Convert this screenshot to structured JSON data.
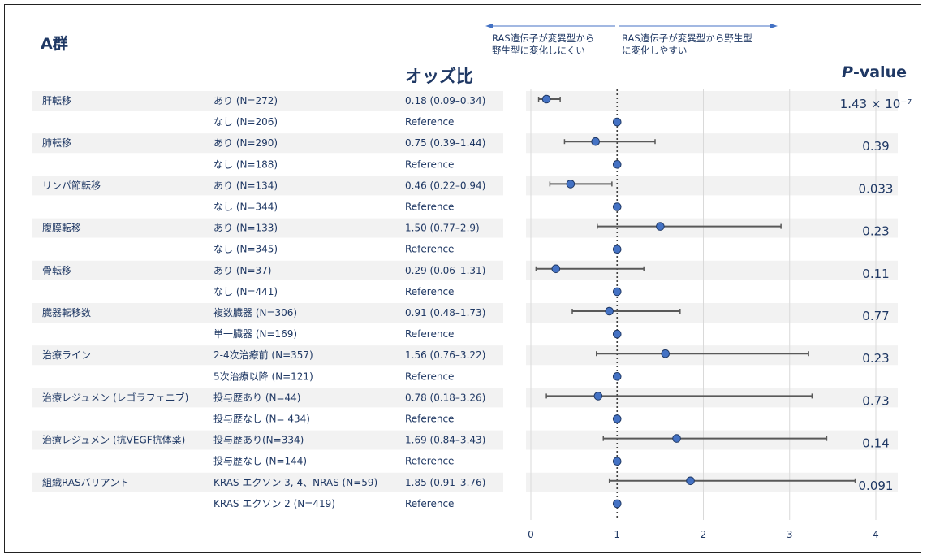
{
  "group_title": "A群",
  "or_header": "オッズ比",
  "pvalue_header": {
    "italic": "P",
    "rest": "-value"
  },
  "direction_left": [
    "RAS遺伝子が変異型から",
    "野生型に変化しにくい"
  ],
  "direction_right": [
    "RAS遺伝子が変異型から野生型",
    "に変化しやすい"
  ],
  "colors": {
    "point": "#4472c4",
    "point_edge": "#1f3864",
    "ci": "#595959",
    "band": "#f2f2f2",
    "text": "#1f3864",
    "arrow": "#4472c4"
  },
  "chart_data": {
    "type": "forest",
    "x_ticks": [
      0,
      1,
      2,
      3,
      4
    ],
    "xlim": [
      0,
      4
    ],
    "reference_line": 1,
    "rows": [
      {
        "variable": "肝転移",
        "level": "あり (N=272)",
        "or_text": "0.18 (0.09–0.34)",
        "or": 0.18,
        "lo": 0.09,
        "hi": 0.34,
        "p": "1.43 × 10⁻⁷"
      },
      {
        "variable": "",
        "level": "なし (N=206)",
        "or_text": "Reference",
        "or": 1,
        "lo": null,
        "hi": null,
        "p": ""
      },
      {
        "variable": "肺転移",
        "level": "あり (N=290)",
        "or_text": "0.75 (0.39–1.44)",
        "or": 0.75,
        "lo": 0.39,
        "hi": 1.44,
        "p": "0.39"
      },
      {
        "variable": "",
        "level": "なし (N=188)",
        "or_text": "Reference",
        "or": 1,
        "lo": null,
        "hi": null,
        "p": ""
      },
      {
        "variable": "リンパ節転移",
        "level": "あり (N=134)",
        "or_text": "0.46 (0.22–0.94)",
        "or": 0.46,
        "lo": 0.22,
        "hi": 0.94,
        "p": "0.033"
      },
      {
        "variable": "",
        "level": "なし (N=344)",
        "or_text": "Reference",
        "or": 1,
        "lo": null,
        "hi": null,
        "p": ""
      },
      {
        "variable": "腹膜転移",
        "level": "あり (N=133)",
        "or_text": "1.50 (0.77–2.9)",
        "or": 1.5,
        "lo": 0.77,
        "hi": 2.9,
        "p": "0.23"
      },
      {
        "variable": "",
        "level": "なし (N=345)",
        "or_text": "Reference",
        "or": 1,
        "lo": null,
        "hi": null,
        "p": ""
      },
      {
        "variable": "骨転移",
        "level": "あり (N=37)",
        "or_text": "0.29 (0.06–1.31)",
        "or": 0.29,
        "lo": 0.06,
        "hi": 1.31,
        "p": "0.11"
      },
      {
        "variable": "",
        "level": "なし (N=441)",
        "or_text": "Reference",
        "or": 1,
        "lo": null,
        "hi": null,
        "p": ""
      },
      {
        "variable": "臓器転移数",
        "level": "複数臓器 (N=306)",
        "or_text": "0.91 (0.48–1.73)",
        "or": 0.91,
        "lo": 0.48,
        "hi": 1.73,
        "p": "0.77"
      },
      {
        "variable": "",
        "level": "単一臓器 (N=169)",
        "or_text": "Reference",
        "or": 1,
        "lo": null,
        "hi": null,
        "p": ""
      },
      {
        "variable": "治療ライン",
        "level": "2-4次治療前 (N=357)",
        "or_text": "1.56 (0.76–3.22)",
        "or": 1.56,
        "lo": 0.76,
        "hi": 3.22,
        "p": "0.23"
      },
      {
        "variable": "",
        "level": "5次治療以降 (N=121)",
        "or_text": "Reference",
        "or": 1,
        "lo": null,
        "hi": null,
        "p": ""
      },
      {
        "variable": "治療レジュメン (レゴラフェニブ)",
        "level": "投与歴あり (N=44)",
        "or_text": "0.78 (0.18–3.26)",
        "or": 0.78,
        "lo": 0.18,
        "hi": 3.26,
        "p": "0.73"
      },
      {
        "variable": "",
        "level": "投与歴なし (N= 434)",
        "or_text": "Reference",
        "or": 1,
        "lo": null,
        "hi": null,
        "p": ""
      },
      {
        "variable": "治療レジュメン (抗VEGF抗体薬)",
        "level": "投与歴あり(N=334)",
        "or_text": "1.69 (0.84–3.43)",
        "or": 1.69,
        "lo": 0.84,
        "hi": 3.43,
        "p": "0.14"
      },
      {
        "variable": "",
        "level": "投与歴なし (N=144)",
        "or_text": "Reference",
        "or": 1,
        "lo": null,
        "hi": null,
        "p": ""
      },
      {
        "variable": "組織RASバリアント",
        "level": "KRAS エクソン 3, 4、NRAS (N=59)",
        "or_text": "1.85 (0.91–3.76)",
        "or": 1.85,
        "lo": 0.91,
        "hi": 3.76,
        "p": "0.091"
      },
      {
        "variable": "",
        "level": "KRAS エクソン 2 (N=419)",
        "or_text": "Reference",
        "or": 1,
        "lo": null,
        "hi": null,
        "p": ""
      }
    ]
  }
}
